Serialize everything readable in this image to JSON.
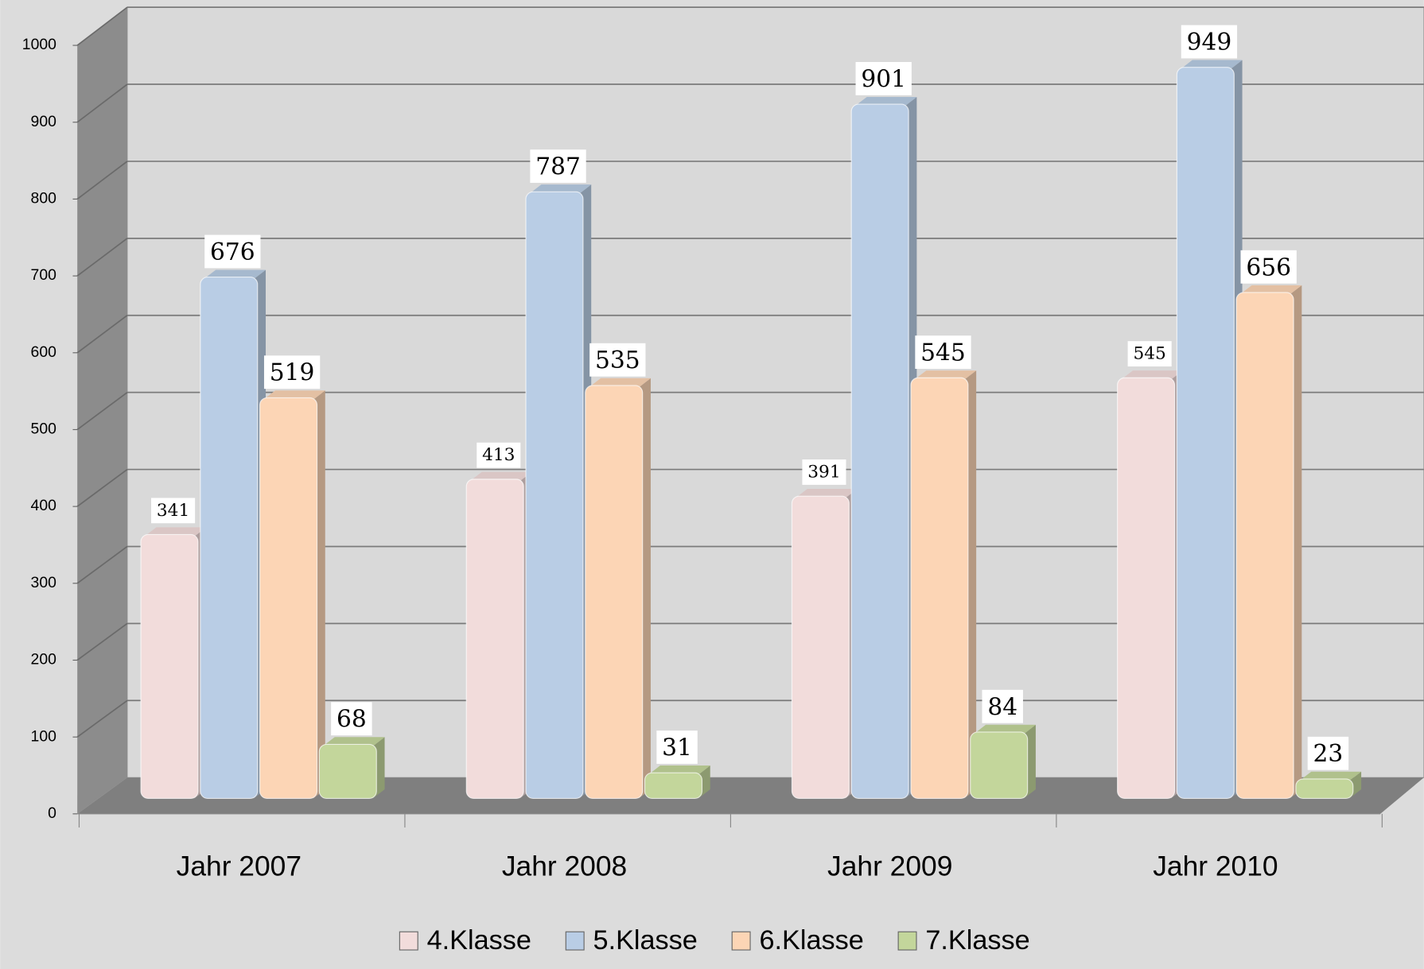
{
  "chart_data": {
    "type": "bar3d",
    "categories": [
      "Jahr 2007",
      "Jahr 2008",
      "Jahr 2009",
      "Jahr 2010"
    ],
    "series": [
      {
        "name": "4.Klasse",
        "color": "#f2dcdb",
        "values": [
          341,
          413,
          391,
          545
        ]
      },
      {
        "name": "5.Klasse",
        "color": "#b9cde5",
        "values": [
          676,
          787,
          901,
          949
        ]
      },
      {
        "name": "6.Klasse",
        "color": "#fcd5b5",
        "values": [
          519,
          535,
          545,
          656
        ]
      },
      {
        "name": "7.Klasse",
        "color": "#c3d69b",
        "values": [
          68,
          31,
          84,
          23
        ]
      }
    ],
    "ylim": [
      0,
      1000
    ],
    "yticks": [
      0,
      100,
      200,
      300,
      400,
      500,
      600,
      700,
      800,
      900,
      1000
    ],
    "grid": true,
    "legend": "bottom"
  }
}
